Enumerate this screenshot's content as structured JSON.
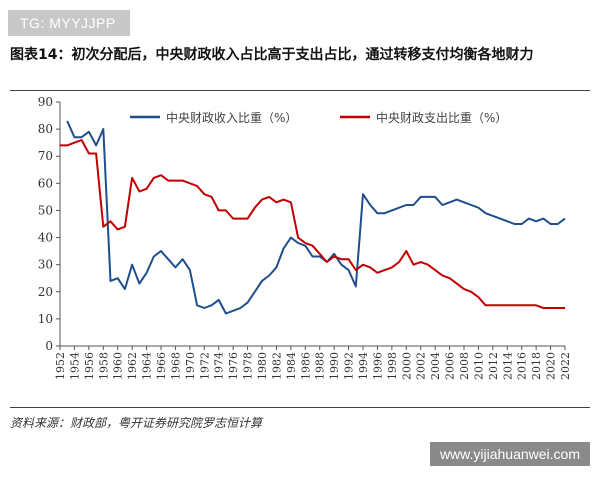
{
  "top_tag": "TG: MYYJJPP",
  "title": "图表14：初次分配后，中央财政收入占比高于支出占比，通过转移支付均衡各地财力",
  "source": "资料来源：财政部，粤开证券研究院罗志恒计算",
  "watermark": "www.yijiahuanwei.com",
  "colors": {
    "series1": "#1f4e8c",
    "series2": "#c00000",
    "axis": "#555555"
  },
  "chart_data": {
    "type": "line",
    "title": "",
    "xlabel": "",
    "ylabel": "",
    "xlim": [
      1952,
      2022
    ],
    "ylim": [
      0,
      90
    ],
    "yticks": [
      0,
      10,
      20,
      30,
      40,
      50,
      60,
      70,
      80,
      90
    ],
    "xticks": [
      1952,
      1954,
      1956,
      1958,
      1960,
      1962,
      1964,
      1966,
      1968,
      1970,
      1972,
      1974,
      1976,
      1978,
      1980,
      1982,
      1984,
      1986,
      1988,
      1990,
      1992,
      1994,
      1996,
      1998,
      2000,
      2002,
      2004,
      2006,
      2008,
      2010,
      2012,
      2014,
      2016,
      2018,
      2020,
      2022
    ],
    "legend_position": "top",
    "series": [
      {
        "name": "中央财政收入比重（%）",
        "color": "#1f4e8c",
        "points": [
          [
            1953,
            83
          ],
          [
            1954,
            77
          ],
          [
            1955,
            77
          ],
          [
            1956,
            79
          ],
          [
            1957,
            74
          ],
          [
            1958,
            80
          ],
          [
            1959,
            24
          ],
          [
            1960,
            25
          ],
          [
            1961,
            21
          ],
          [
            1962,
            30
          ],
          [
            1963,
            23
          ],
          [
            1964,
            27
          ],
          [
            1965,
            33
          ],
          [
            1966,
            35
          ],
          [
            1967,
            32
          ],
          [
            1968,
            29
          ],
          [
            1969,
            32
          ],
          [
            1970,
            28
          ],
          [
            1971,
            15
          ],
          [
            1972,
            14
          ],
          [
            1973,
            15
          ],
          [
            1974,
            17
          ],
          [
            1975,
            12
          ],
          [
            1976,
            13
          ],
          [
            1977,
            14
          ],
          [
            1978,
            16
          ],
          [
            1979,
            20
          ],
          [
            1980,
            24
          ],
          [
            1981,
            26
          ],
          [
            1982,
            29
          ],
          [
            1983,
            36
          ],
          [
            1984,
            40
          ],
          [
            1985,
            38
          ],
          [
            1986,
            37
          ],
          [
            1987,
            33
          ],
          [
            1988,
            33
          ],
          [
            1989,
            31
          ],
          [
            1990,
            34
          ],
          [
            1991,
            30
          ],
          [
            1992,
            28
          ],
          [
            1993,
            22
          ],
          [
            1994,
            56
          ],
          [
            1995,
            52
          ],
          [
            1996,
            49
          ],
          [
            1997,
            49
          ],
          [
            1998,
            50
          ],
          [
            1999,
            51
          ],
          [
            2000,
            52
          ],
          [
            2001,
            52
          ],
          [
            2002,
            55
          ],
          [
            2003,
            55
          ],
          [
            2004,
            55
          ],
          [
            2005,
            52
          ],
          [
            2006,
            53
          ],
          [
            2007,
            54
          ],
          [
            2008,
            53
          ],
          [
            2009,
            52
          ],
          [
            2010,
            51
          ],
          [
            2011,
            49
          ],
          [
            2012,
            48
          ],
          [
            2013,
            47
          ],
          [
            2014,
            46
          ],
          [
            2015,
            45
          ],
          [
            2016,
            45
          ],
          [
            2017,
            47
          ],
          [
            2018,
            46
          ],
          [
            2019,
            47
          ],
          [
            2020,
            45
          ],
          [
            2021,
            45
          ],
          [
            2022,
            47
          ]
        ]
      },
      {
        "name": "中央财政支出比重（%）",
        "color": "#c00000",
        "points": [
          [
            1952,
            74
          ],
          [
            1953,
            74
          ],
          [
            1954,
            75
          ],
          [
            1955,
            76
          ],
          [
            1956,
            71
          ],
          [
            1957,
            71
          ],
          [
            1958,
            44
          ],
          [
            1959,
            46
          ],
          [
            1960,
            43
          ],
          [
            1961,
            44
          ],
          [
            1962,
            62
          ],
          [
            1963,
            57
          ],
          [
            1964,
            58
          ],
          [
            1965,
            62
          ],
          [
            1966,
            63
          ],
          [
            1967,
            61
          ],
          [
            1968,
            61
          ],
          [
            1969,
            61
          ],
          [
            1970,
            60
          ],
          [
            1971,
            59
          ],
          [
            1972,
            56
          ],
          [
            1973,
            55
          ],
          [
            1974,
            50
          ],
          [
            1975,
            50
          ],
          [
            1976,
            47
          ],
          [
            1977,
            47
          ],
          [
            1978,
            47
          ],
          [
            1979,
            51
          ],
          [
            1980,
            54
          ],
          [
            1981,
            55
          ],
          [
            1982,
            53
          ],
          [
            1983,
            54
          ],
          [
            1984,
            53
          ],
          [
            1985,
            40
          ],
          [
            1986,
            38
          ],
          [
            1987,
            37
          ],
          [
            1988,
            34
          ],
          [
            1989,
            31
          ],
          [
            1990,
            33
          ],
          [
            1991,
            32
          ],
          [
            1992,
            32
          ],
          [
            1993,
            28
          ],
          [
            1994,
            30
          ],
          [
            1995,
            29
          ],
          [
            1996,
            27
          ],
          [
            1997,
            28
          ],
          [
            1998,
            29
          ],
          [
            1999,
            31
          ],
          [
            2000,
            35
          ],
          [
            2001,
            30
          ],
          [
            2002,
            31
          ],
          [
            2003,
            30
          ],
          [
            2004,
            28
          ],
          [
            2005,
            26
          ],
          [
            2006,
            25
          ],
          [
            2007,
            23
          ],
          [
            2008,
            21
          ],
          [
            2009,
            20
          ],
          [
            2010,
            18
          ],
          [
            2011,
            15
          ],
          [
            2012,
            15
          ],
          [
            2013,
            15
          ],
          [
            2014,
            15
          ],
          [
            2015,
            15
          ],
          [
            2016,
            15
          ],
          [
            2017,
            15
          ],
          [
            2018,
            15
          ],
          [
            2019,
            14
          ],
          [
            2020,
            14
          ],
          [
            2021,
            14
          ],
          [
            2022,
            14
          ]
        ]
      }
    ]
  }
}
